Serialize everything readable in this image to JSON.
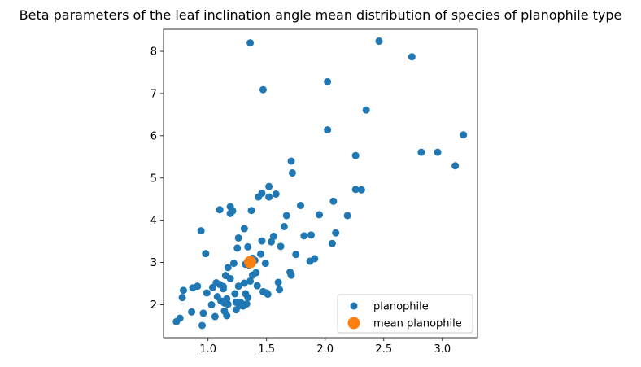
{
  "chart_data": {
    "type": "scatter",
    "title": "Beta parameters of the leaf inclination angle mean distribution of species of planophile type",
    "xlabel": "",
    "ylabel": "",
    "xlim": [
      0.62,
      3.3
    ],
    "ylim": [
      1.22,
      8.52
    ],
    "xticks": [
      "1.0",
      "1.5",
      "2.0",
      "2.5",
      "3.0"
    ],
    "yticks": [
      "2",
      "3",
      "4",
      "5",
      "6",
      "7",
      "8"
    ],
    "grid": false,
    "legend_position": "lower right",
    "series": [
      {
        "name": "planophile",
        "color": "#1f77b4",
        "points": [
          [
            0.73,
            1.6
          ],
          [
            0.76,
            1.68
          ],
          [
            0.78,
            2.17
          ],
          [
            0.79,
            2.34
          ],
          [
            0.86,
            1.83
          ],
          [
            0.87,
            2.4
          ],
          [
            0.91,
            2.44
          ],
          [
            0.94,
            3.75
          ],
          [
            0.95,
            1.51
          ],
          [
            0.96,
            1.8
          ],
          [
            0.98,
            3.21
          ],
          [
            0.99,
            2.28
          ],
          [
            1.03,
            2.0
          ],
          [
            1.04,
            2.41
          ],
          [
            1.06,
            1.72
          ],
          [
            1.07,
            2.52
          ],
          [
            1.08,
            2.19
          ],
          [
            1.1,
            4.25
          ],
          [
            1.1,
            2.48
          ],
          [
            1.11,
            2.09
          ],
          [
            1.13,
            2.38
          ],
          [
            1.13,
            2.43
          ],
          [
            1.14,
            2.04
          ],
          [
            1.14,
            1.85
          ],
          [
            1.15,
            2.69
          ],
          [
            1.16,
            2.14
          ],
          [
            1.16,
            1.74
          ],
          [
            1.17,
            2.88
          ],
          [
            1.17,
            2.01
          ],
          [
            1.19,
            2.62
          ],
          [
            1.19,
            4.32
          ],
          [
            1.19,
            4.16
          ],
          [
            1.21,
            4.22
          ],
          [
            1.22,
            2.98
          ],
          [
            1.23,
            2.26
          ],
          [
            1.24,
            2.06
          ],
          [
            1.24,
            1.88
          ],
          [
            1.25,
            3.34
          ],
          [
            1.26,
            3.58
          ],
          [
            1.26,
            2.44
          ],
          [
            1.27,
            1.98
          ],
          [
            1.28,
            2.05
          ],
          [
            1.3,
            1.97
          ],
          [
            1.31,
            3.8
          ],
          [
            1.31,
            2.51
          ],
          [
            1.32,
            2.96
          ],
          [
            1.32,
            2.26
          ],
          [
            1.33,
            2.02
          ],
          [
            1.34,
            3.37
          ],
          [
            1.34,
            2.17
          ],
          [
            1.35,
            2.94
          ],
          [
            1.36,
            2.56
          ],
          [
            1.37,
            4.23
          ],
          [
            1.38,
            2.7
          ],
          [
            1.38,
            3.1
          ],
          [
            1.4,
            3.05
          ],
          [
            1.41,
            2.76
          ],
          [
            1.42,
            2.45
          ],
          [
            1.43,
            4.55
          ],
          [
            1.45,
            3.2
          ],
          [
            1.46,
            3.51
          ],
          [
            1.46,
            4.64
          ],
          [
            1.47,
            2.31
          ],
          [
            1.49,
            2.98
          ],
          [
            1.5,
            2.28
          ],
          [
            1.51,
            2.25
          ],
          [
            1.52,
            4.55
          ],
          [
            1.52,
            4.8
          ],
          [
            1.54,
            3.49
          ],
          [
            1.56,
            3.62
          ],
          [
            1.58,
            4.62
          ],
          [
            1.6,
            2.53
          ],
          [
            1.61,
            2.36
          ],
          [
            1.62,
            3.38
          ],
          [
            1.65,
            3.85
          ],
          [
            1.67,
            4.11
          ],
          [
            1.7,
            2.77
          ],
          [
            1.71,
            2.7
          ],
          [
            1.71,
            5.4
          ],
          [
            1.72,
            5.12
          ],
          [
            1.75,
            3.19
          ],
          [
            1.79,
            4.35
          ],
          [
            1.82,
            3.63
          ],
          [
            1.87,
            3.03
          ],
          [
            1.88,
            3.65
          ],
          [
            1.91,
            3.09
          ],
          [
            1.95,
            4.13
          ],
          [
            2.02,
            7.28
          ],
          [
            2.02,
            6.14
          ],
          [
            2.06,
            3.45
          ],
          [
            2.07,
            4.45
          ],
          [
            2.09,
            3.7
          ],
          [
            2.19,
            4.11
          ],
          [
            2.26,
            5.53
          ],
          [
            2.26,
            4.73
          ],
          [
            2.31,
            4.72
          ],
          [
            2.35,
            6.61
          ],
          [
            1.36,
            8.2
          ],
          [
            1.47,
            7.09
          ],
          [
            2.46,
            8.24
          ],
          [
            2.74,
            7.87
          ],
          [
            2.82,
            5.61
          ],
          [
            2.96,
            5.61
          ],
          [
            3.11,
            5.29
          ],
          [
            3.18,
            6.02
          ]
        ]
      },
      {
        "name": "mean planophile",
        "color": "#ff7f0e",
        "points": [
          [
            1.36,
            3.01
          ]
        ]
      }
    ]
  }
}
